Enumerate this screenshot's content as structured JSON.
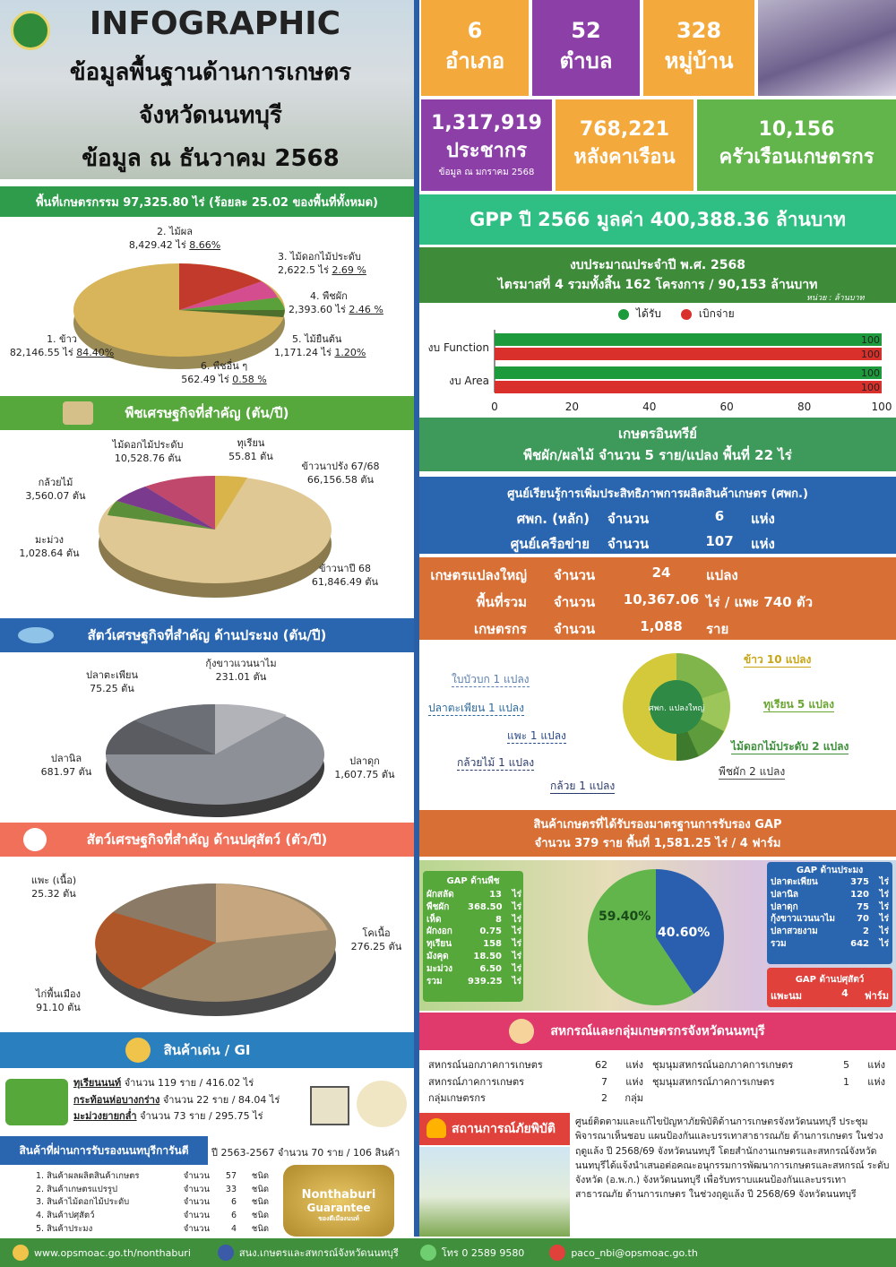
{
  "header": {
    "title": "INFOGRAPHIC",
    "line1": "ข้อมูลพื้นฐานด้านการเกษตร",
    "line2": "จังหวัดนนทบุรี",
    "line3": "ข้อมูล ณ ธันวาคม 2568"
  },
  "admin": {
    "district_num": "6",
    "district_lbl": "อำเภอ",
    "subdistrict_num": "52",
    "subdistrict_lbl": "ตำบล",
    "village_num": "328",
    "village_lbl": "หมู่บ้าน"
  },
  "population": {
    "pop_num": "1,317,919",
    "pop_lbl": "ประชากร",
    "pop_note": "ข้อมูล ณ มกราคม 2568",
    "house_num": "768,221",
    "house_lbl": "หลังคาเรือน",
    "farm_num": "10,156",
    "farm_lbl": "ครัวเรือนเกษตรกร"
  },
  "landuse": {
    "banner": "พื้นที่เกษตรกรรม 97,325.80 ไร่ (ร้อยละ 25.02 ของพื้นที่ทั้งหมด)",
    "items": [
      {
        "name": "2. ไม้ผล",
        "value": "8,429.42 ไร่",
        "pct": "8.66%"
      },
      {
        "name": "3. ไม้ดอกไม้ประดับ",
        "value": "2,622.5 ไร่",
        "pct": "2.69 %"
      },
      {
        "name": "4. พืชผัก",
        "value": "2,393.60 ไร่",
        "pct": "2.46 %"
      },
      {
        "name": "5. ไม้ยืนต้น",
        "value": "1,171.24 ไร่",
        "pct": "1.20%"
      },
      {
        "name": "6. พืชอื่น ๆ",
        "value": "562.49 ไร่",
        "pct": "0.58 %"
      },
      {
        "name": "1. ข้าว",
        "value": "82,146.55 ไร่",
        "pct": "84.40%"
      }
    ]
  },
  "gpp": {
    "text": "GPP ปี 2566 มูลค่า 400,388.36 ล้านบาท"
  },
  "budget": {
    "line1": "งบประมาณประจำปี พ.ศ. 2568",
    "line2": "ไตรมาสที่ 4 รวมทั้งสิ้น 162 โครงการ / 90,153 ล้านบาท",
    "unit": "หน่วย : ล้านบาท",
    "legend_recv": "ได้รับ",
    "legend_spent": "เบิกจ่าย",
    "color_recv": "#1c9a3c",
    "color_spent": "#d9302c"
  },
  "chart_data": {
    "type": "bar",
    "categories": [
      "งบ Function",
      "งบ Area"
    ],
    "series": [
      {
        "name": "ได้รับ",
        "values": [
          100,
          100
        ]
      },
      {
        "name": "เบิกจ่าย",
        "values": [
          100,
          100
        ]
      }
    ],
    "xlim": [
      0,
      100
    ],
    "ticks": [
      "0",
      "20",
      "40",
      "60",
      "80",
      "100"
    ],
    "value_labels": [
      "100",
      "100",
      "100",
      "100"
    ]
  },
  "crops": {
    "banner": "พืชเศรษฐกิจที่สำคัญ (ตัน/ปี)",
    "items": [
      {
        "name": "ไม้ดอกไม้ประดับ",
        "value": "10,528.76 ตัน"
      },
      {
        "name": "ทุเรียน",
        "value": "55.81 ตัน"
      },
      {
        "name": "ข้าวนาปรัง 67/68",
        "value": "66,156.58 ตัน"
      },
      {
        "name": "กล้วยไม้",
        "value": "3,560.07 ตัน"
      },
      {
        "name": "มะม่วง",
        "value": "1,028.64 ตัน"
      },
      {
        "name": "ข้าวนาปี 68",
        "value": "61,846.49 ตัน"
      }
    ]
  },
  "organic": {
    "line1": "เกษตรอินทรีย์",
    "line2": "พืชผัก/ผลไม้ จำนวน 5 ราย/แปลง พื้นที่ 22 ไร่"
  },
  "learning": {
    "title": "ศูนย์เรียนรู้การเพิ่มประสิทธิภาพการผลิตสินค้าเกษตร (ศพก.)",
    "r1_name": "ศพก. (หลัก)",
    "r1_qty": "จำนวน",
    "r1_num": "6",
    "r1_unit": "แห่ง",
    "r2_name": "ศูนย์เครือข่าย",
    "r2_qty": "จำนวน",
    "r2_num": "107",
    "r2_unit": "แห่ง"
  },
  "bigfarm": {
    "r1_name": "เกษตรแปลงใหญ่",
    "r1_qty": "จำนวน",
    "r1_num": "24",
    "r1_unit": "แปลง",
    "r2_name": "พื้นที่รวม",
    "r2_qty": "จำนวน",
    "r2_num": "10,367.06",
    "r2_unit": "ไร่ / แพะ 740 ตัว",
    "r3_name": "เกษตรกร",
    "r3_qty": "จำนวน",
    "r3_num": "1,088",
    "r3_unit": "ราย",
    "logo_text": "ศพก. แปลงใหญ่",
    "plots": [
      {
        "label": "ข้าว 10 แปลง"
      },
      {
        "label": "ทุเรียน 5 แปลง"
      },
      {
        "label": "ไม้ดอกไม้ประดับ 2 แปลง"
      },
      {
        "label": "พืชผัก 2 แปลง"
      },
      {
        "label": "กล้วย 1 แปลง"
      },
      {
        "label": "กล้วยไม้ 1 แปลง"
      },
      {
        "label": "แพะ 1 แปลง"
      },
      {
        "label": "ปลาตะเพียน 1 แปลง"
      },
      {
        "label": "ใบบัวบก 1 แปลง"
      }
    ]
  },
  "fish": {
    "banner": "สัตว์เศรษฐกิจที่สำคัญ ด้านประมง (ตัน/ปี)",
    "items": [
      {
        "name": "ปลาตะเพียน",
        "value": "75.25 ตัน"
      },
      {
        "name": "กุ้งขาวแวนนาไม",
        "value": "231.01 ตัน"
      },
      {
        "name": "ปลานิล",
        "value": "681.97 ตัน"
      },
      {
        "name": "ปลาดุก",
        "value": "1,607.75 ตัน"
      }
    ]
  },
  "gap": {
    "title1": "สินค้าเกษตรที่ได้รับรองมาตรฐานการรับรอง GAP",
    "title2": "จำนวน 379 ราย พื้นที่ 1,581.25 ไร่ / 4 ฟาร์ม",
    "pct_plant": "59.40%",
    "pct_fish": "40.60%",
    "share_plant": 59.4,
    "plant_title": "GAP ด้านพืช",
    "plant_rows": [
      {
        "n": "ผักสลัด",
        "v": "13",
        "u": "ไร่"
      },
      {
        "n": "พืชผัก",
        "v": "368.50",
        "u": "ไร่"
      },
      {
        "n": "เห็ด",
        "v": "8",
        "u": "ไร่"
      },
      {
        "n": "ผักงอก",
        "v": "0.75",
        "u": "ไร่"
      },
      {
        "n": "ทุเรียน",
        "v": "158",
        "u": "ไร่"
      },
      {
        "n": "มังคุด",
        "v": "18.50",
        "u": "ไร่"
      },
      {
        "n": "มะม่วง",
        "v": "6.50",
        "u": "ไร่"
      },
      {
        "n": "รวม",
        "v": "939.25",
        "u": "ไร่"
      }
    ],
    "fish_title": "GAP ด้านประมง",
    "fish_rows": [
      {
        "n": "ปลาตะเพียน",
        "v": "375",
        "u": "ไร่"
      },
      {
        "n": "ปลานิล",
        "v": "120",
        "u": "ไร่"
      },
      {
        "n": "ปลาดุก",
        "v": "75",
        "u": "ไร่"
      },
      {
        "n": "กุ้งขาวแวนนาไม",
        "v": "70",
        "u": "ไร่"
      },
      {
        "n": "ปลาสวยงาม",
        "v": "2",
        "u": "ไร่"
      },
      {
        "n": "รวม",
        "v": "642",
        "u": "ไร่"
      }
    ],
    "livestock_title": "GAP ด้านปศุสัตว์",
    "livestock_n": "แพะนม",
    "livestock_v": "4",
    "livestock_u": "ฟาร์ม"
  },
  "livestock": {
    "banner": "สัตว์เศรษฐกิจที่สำคัญ ด้านปศุสัตว์ (ตัว/ปี)",
    "items": [
      {
        "name": "แพะ (เนื้อ)",
        "value": "25.32 ตัน"
      },
      {
        "name": "โคเนื้อ",
        "value": "276.25 ตัน"
      },
      {
        "name": "ไก่พื้นเมือง",
        "value": "91.10 ตัน"
      }
    ]
  },
  "coop": {
    "banner": "สหกรณ์และกลุ่มเกษตรกรจังหวัดนนทบุรี",
    "left": [
      {
        "n": "สหกรณ์นอกภาคการเกษตร",
        "v": "62",
        "u": "แห่ง"
      },
      {
        "n": "สหกรณ์ภาคการเกษตร",
        "v": "7",
        "u": "แห่ง"
      },
      {
        "n": "กลุ่มเกษตรกร",
        "v": "2",
        "u": "กลุ่ม"
      }
    ],
    "right": [
      {
        "n": "ชุมนุมสหกรณ์นอกภาคการเกษตร",
        "v": "5",
        "u": "แห่ง"
      },
      {
        "n": "ชุมนุมสหกรณ์ภาคการเกษตร",
        "v": "1",
        "u": "แห่ง"
      }
    ]
  },
  "gi": {
    "banner": "สินค้าเด่น / GI",
    "items": [
      {
        "name": "ทุเรียนนนท์",
        "detail": "จำนวน 119 ราย / 416.02 ไร่"
      },
      {
        "name": "กระท้อนห่อบางกร่าง",
        "detail": "จำนวน 22 ราย / 84.04 ไร่"
      },
      {
        "name": "มะม่วงยายกล่ำ",
        "detail": "จำนวน 73 ราย / 295.75 ไร่"
      }
    ]
  },
  "guarantee": {
    "banner": "สินค้าที่ผ่านการรับรองนนทบุรีการันตี",
    "summary": "ปี 2563-2567 จำนวน 70 ราย / 106 สินค้า",
    "rows": [
      {
        "n": "1. สินค้าผลผลิตสินค้าเกษตร",
        "q": "จำนวน",
        "v": "57",
        "u": "ชนิด"
      },
      {
        "n": "2. สินค้าเกษตรแปรรูป",
        "q": "จำนวน",
        "v": "33",
        "u": "ชนิด"
      },
      {
        "n": "3. สินค้าไม้ดอกไม้ประดับ",
        "q": "จำนวน",
        "v": "6",
        "u": "ชนิด"
      },
      {
        "n": "4. สินค้าปศุสัตว์",
        "q": "จำนวน",
        "v": "6",
        "u": "ชนิด"
      },
      {
        "n": "5. สินค้าประมง",
        "q": "จำนวน",
        "v": "4",
        "u": "ชนิด"
      }
    ],
    "logo1": "Nonthaburi",
    "logo2": "Guarantee",
    "logo3": "ของดีเมืองนนท์"
  },
  "disaster": {
    "banner": "สถานการณ์ภัยพิบัติ",
    "text": "ศูนย์ติดตามและแก้ไขปัญหาภัยพิบัติด้านการเกษตรจังหวัดนนทบุรี ประชุมพิจารณาเห็นชอบ แผนป้องกันและบรรเทาสาธารณภัย ด้านการเกษตร ในช่วงฤดูแล้ง ปี 2568/69 จังหวัดนนทบุรี โดยสำนักงานเกษตรและสหกรณ์จังหวัดนนทบุรีได้แจ้งนำเสนอต่อคณะอนุกรรมการพัฒนาการเกษตรและสหกรณ์ ระดับจังหวัด (อ.พ.ก.) จังหวัดนนทบุรี เพื่อรับทราบแผนป้องกันและบรรเทาสาธารณภัย ด้านการเกษตร ในช่วงฤดูแล้ง ปี 2568/69 จังหวัดนนทบุรี"
  },
  "footer": {
    "web": "www.opsmoac.go.th/nonthaburi",
    "fb": "สนง.เกษตรและสหกรณ์จังหวัดนนทบุรี",
    "tel": "โทร 0 2589 9580",
    "mail": "paco_nbi@opsmoac.go.th"
  }
}
